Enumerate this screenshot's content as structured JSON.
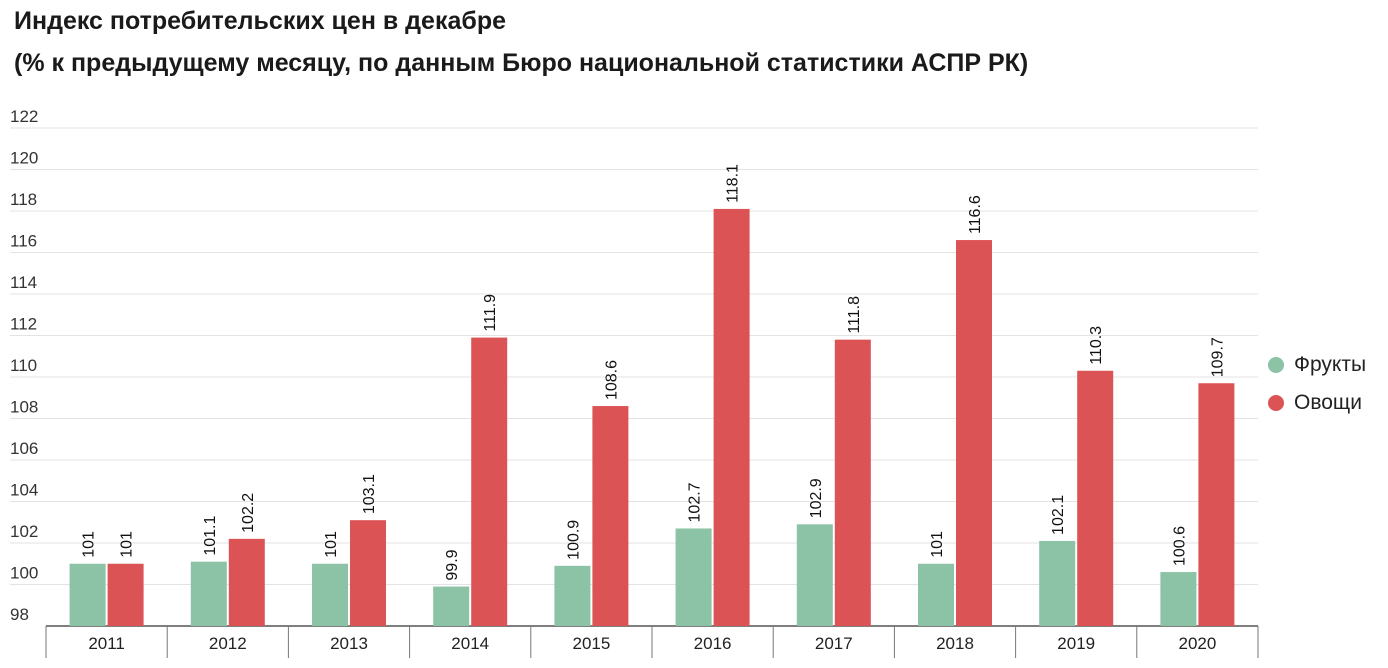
{
  "chart_data": {
    "type": "bar",
    "title": "Индекс потребительских цен в декабре",
    "subtitle": "(% к предыдущему месяцу, по данным Бюро национальной статистики АСПР РК)",
    "xlabel": "",
    "ylabel": "",
    "ylim": [
      98,
      122
    ],
    "yticks": [
      "98",
      "100",
      "102",
      "104",
      "106",
      "108",
      "110",
      "112",
      "114",
      "116",
      "118",
      "120",
      "122"
    ],
    "categories": [
      "2011",
      "2012",
      "2013",
      "2014",
      "2015",
      "2016",
      "2017",
      "2018",
      "2019",
      "2020"
    ],
    "series": [
      {
        "name": "Фрукты",
        "color": "#8cc2a6",
        "values": [
          101,
          101.1,
          101,
          99.9,
          100.9,
          102.7,
          102.9,
          101,
          102.1,
          100.6
        ],
        "labels": [
          "101",
          "101.1",
          "101",
          "99.9",
          "100.9",
          "102.7",
          "102.9",
          "101",
          "102.1",
          "100.6"
        ]
      },
      {
        "name": "Овощи",
        "color": "#dc5356",
        "values": [
          101,
          102.2,
          103.1,
          111.9,
          108.6,
          118.1,
          111.8,
          116.6,
          110.3,
          109.7
        ],
        "labels": [
          "101",
          "102.2",
          "103.1",
          "111.9",
          "108.6",
          "118.1",
          "111.8",
          "116.6",
          "110.3",
          "109.7"
        ]
      }
    ],
    "grid": true,
    "legend_position": "right"
  }
}
